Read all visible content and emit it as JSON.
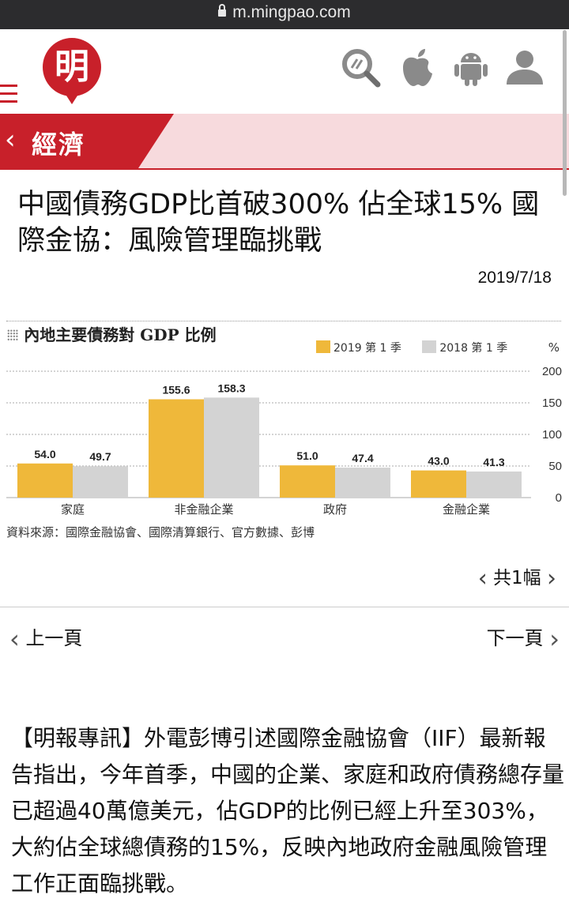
{
  "browser": {
    "url": "m.mingpao.com"
  },
  "header": {
    "logo_text": "明",
    "icons": [
      "search-icon",
      "apple-icon",
      "android-icon",
      "user-icon"
    ]
  },
  "section": {
    "label": "經濟"
  },
  "article": {
    "headline": "中國債務GDP比首破300% 佔全球15% 國際金協：風險管理臨挑戰",
    "date": "2019/7/18",
    "body": "【明報專訊】外電彭博引述國際金融協會（IIF）最新報告指出，今年首季，中國的企業、家庭和政府債務總存量已超過40萬億美元，佔GDP的比例已經上升至303%，大約佔全球總債務的15%，反映內地政府金融風險管理工作正面臨挑戰。"
  },
  "chart_data": {
    "type": "bar",
    "title": "內地主要債務對 GDP 比例",
    "unit": "%",
    "categories": [
      "家庭",
      "非金融企業",
      "政府",
      "金融企業"
    ],
    "series": [
      {
        "name": "2019 第 1 季",
        "values": [
          54.0,
          155.6,
          51.0,
          43.0
        ],
        "color": "#efb83a"
      },
      {
        "name": "2018 第 1 季",
        "values": [
          49.7,
          158.3,
          47.4,
          41.3
        ],
        "color": "#d3d3d3"
      }
    ],
    "y_ticks": [
      "200",
      "150",
      "100",
      "50",
      "0"
    ],
    "ylim": [
      0,
      200
    ],
    "grid": true,
    "legend": "top-right",
    "source": "資料來源：國際金融協會、國際清算銀行、官方數據、彭博"
  },
  "gallery": {
    "count_label": "共1幅"
  },
  "nav": {
    "prev": "上一頁",
    "next": "下一頁"
  }
}
